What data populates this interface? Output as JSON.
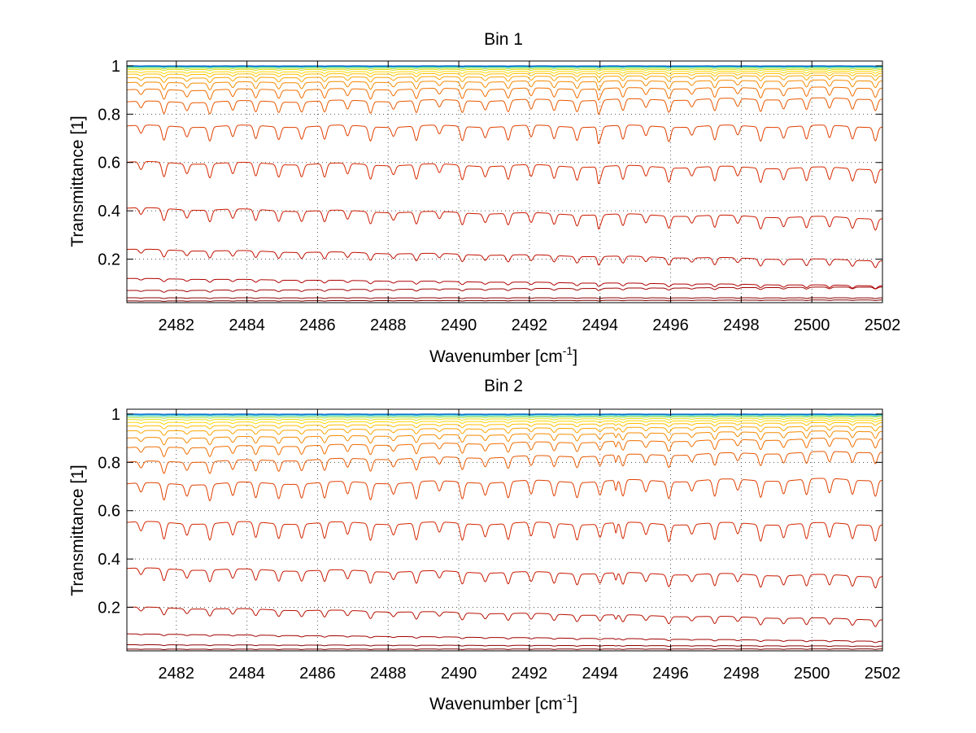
{
  "chart_data": [
    {
      "type": "line",
      "title": "Bin 1",
      "xlabel": "Wavenumber [cm",
      "xlabel_sup": "-1",
      "xlabel_end": "]",
      "ylabel": "Transmittance [1]",
      "xlim": [
        2480.6,
        2502
      ],
      "ylim": [
        0.02,
        1.02
      ],
      "grid": true,
      "xticks": [
        2482,
        2484,
        2486,
        2488,
        2490,
        2492,
        2494,
        2496,
        2498,
        2500,
        2502
      ],
      "yticks": [
        0.2,
        0.4,
        0.6,
        0.8,
        1
      ],
      "ytick_labels": [
        "0.2",
        "0.4",
        "0.6",
        "0.8",
        "1"
      ],
      "line_spacing_cm": 0.65,
      "line_start_cm": 2481.0,
      "glitch_x": 2493.95,
      "series": [
        {
          "baseline_start": 0.027,
          "baseline_end": 0.031,
          "depth": 0.002,
          "color": "#7f0000"
        },
        {
          "baseline_start": 0.04,
          "baseline_end": 0.04,
          "depth": 0.003,
          "color": "#8b0000"
        },
        {
          "baseline_start": 0.07,
          "baseline_end": 0.085,
          "depth": 0.008,
          "color": "#a00000"
        },
        {
          "baseline_start": 0.12,
          "baseline_end": 0.09,
          "depth": 0.012,
          "color": "#b00000"
        },
        {
          "baseline_start": 0.24,
          "baseline_end": 0.195,
          "depth": 0.03,
          "color": "#c01000"
        },
        {
          "baseline_start": 0.41,
          "baseline_end": 0.37,
          "depth": 0.05,
          "color": "#cc1a00"
        },
        {
          "baseline_start": 0.6,
          "baseline_end": 0.575,
          "depth": 0.06,
          "color": "#d62a00"
        },
        {
          "baseline_start": 0.75,
          "baseline_end": 0.75,
          "depth": 0.06,
          "color": "#e04000"
        },
        {
          "baseline_start": 0.85,
          "baseline_end": 0.865,
          "depth": 0.05,
          "color": "#e85800"
        },
        {
          "baseline_start": 0.9,
          "baseline_end": 0.91,
          "depth": 0.04,
          "color": "#f06e00"
        },
        {
          "baseline_start": 0.93,
          "baseline_end": 0.94,
          "depth": 0.03,
          "color": "#f58a00"
        },
        {
          "baseline_start": 0.95,
          "baseline_end": 0.96,
          "depth": 0.02,
          "color": "#faa500"
        },
        {
          "baseline_start": 0.965,
          "baseline_end": 0.97,
          "depth": 0.012,
          "color": "#ffbe00"
        },
        {
          "baseline_start": 0.975,
          "baseline_end": 0.978,
          "depth": 0.008,
          "color": "#ffd700"
        },
        {
          "baseline_start": 0.985,
          "baseline_end": 0.985,
          "depth": 0.005,
          "color": "#e0e020"
        },
        {
          "baseline_start": 0.99,
          "baseline_end": 0.99,
          "depth": 0.003,
          "color": "#a0e040"
        },
        {
          "baseline_start": 0.995,
          "baseline_end": 0.995,
          "depth": 0.002,
          "color": "#40d0a0"
        },
        {
          "baseline_start": 0.998,
          "baseline_end": 0.998,
          "depth": 0.002,
          "color": "#00a0e0"
        },
        {
          "baseline_start": 1.0,
          "baseline_end": 1.0,
          "depth": 0.001,
          "color": "#0050c0"
        }
      ]
    },
    {
      "type": "line",
      "title": "Bin 2",
      "xlabel": "Wavenumber [cm",
      "xlabel_sup": "-1",
      "xlabel_end": "]",
      "ylabel": "Transmittance [1]",
      "xlim": [
        2480.6,
        2502
      ],
      "ylim": [
        0.02,
        1.02
      ],
      "grid": true,
      "xticks": [
        2482,
        2484,
        2486,
        2488,
        2490,
        2492,
        2494,
        2496,
        2498,
        2500,
        2502
      ],
      "yticks": [
        0.2,
        0.4,
        0.6,
        0.8,
        1
      ],
      "ytick_labels": [
        "0.2",
        "0.4",
        "0.6",
        "0.8",
        "1"
      ],
      "line_spacing_cm": 0.65,
      "line_start_cm": 2481.0,
      "glitch_x": 2494.45,
      "series": [
        {
          "baseline_start": 0.027,
          "baseline_end": 0.028,
          "depth": 0.002,
          "color": "#7f0000"
        },
        {
          "baseline_start": 0.045,
          "baseline_end": 0.04,
          "depth": 0.003,
          "color": "#8b0000"
        },
        {
          "baseline_start": 0.09,
          "baseline_end": 0.06,
          "depth": 0.006,
          "color": "#a00000"
        },
        {
          "baseline_start": 0.2,
          "baseline_end": 0.15,
          "depth": 0.03,
          "color": "#b81000"
        },
        {
          "baseline_start": 0.36,
          "baseline_end": 0.33,
          "depth": 0.05,
          "color": "#c81800"
        },
        {
          "baseline_start": 0.55,
          "baseline_end": 0.545,
          "depth": 0.07,
          "color": "#d42800"
        },
        {
          "baseline_start": 0.71,
          "baseline_end": 0.73,
          "depth": 0.07,
          "color": "#e04000"
        },
        {
          "baseline_start": 0.8,
          "baseline_end": 0.845,
          "depth": 0.05,
          "color": "#e85800"
        },
        {
          "baseline_start": 0.86,
          "baseline_end": 0.9,
          "depth": 0.04,
          "color": "#f06e00"
        },
        {
          "baseline_start": 0.9,
          "baseline_end": 0.93,
          "depth": 0.03,
          "color": "#f58a00"
        },
        {
          "baseline_start": 0.93,
          "baseline_end": 0.95,
          "depth": 0.02,
          "color": "#faa500"
        },
        {
          "baseline_start": 0.95,
          "baseline_end": 0.965,
          "depth": 0.012,
          "color": "#ffbe00"
        },
        {
          "baseline_start": 0.965,
          "baseline_end": 0.975,
          "depth": 0.008,
          "color": "#ffd700"
        },
        {
          "baseline_start": 0.977,
          "baseline_end": 0.983,
          "depth": 0.005,
          "color": "#e0e020"
        },
        {
          "baseline_start": 0.985,
          "baseline_end": 0.99,
          "depth": 0.003,
          "color": "#a0e040"
        },
        {
          "baseline_start": 0.992,
          "baseline_end": 0.994,
          "depth": 0.002,
          "color": "#40d0a0"
        },
        {
          "baseline_start": 0.997,
          "baseline_end": 0.998,
          "depth": 0.002,
          "color": "#00a0e0"
        },
        {
          "baseline_start": 1.0,
          "baseline_end": 1.0,
          "depth": 0.001,
          "color": "#0050c0"
        }
      ]
    }
  ]
}
